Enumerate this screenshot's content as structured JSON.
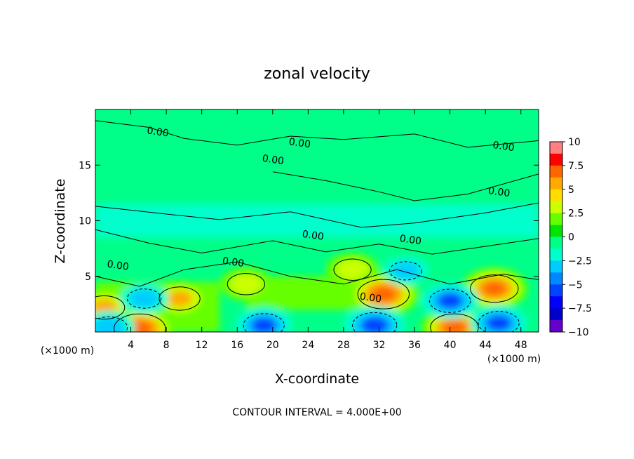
{
  "chart_data": {
    "type": "heatmap",
    "title": "zonal velocity",
    "xlabel": "X-coordinate",
    "ylabel": "Z-coordinate",
    "x_unit_label_left": "(×1000 m)",
    "x_unit_label_right": "(×1000 m)",
    "footer": "CONTOUR INTERVAL = 4.000E+00",
    "xlim": [
      0,
      50
    ],
    "ylim": [
      0,
      20
    ],
    "x_ticks": [
      4,
      8,
      12,
      16,
      20,
      24,
      28,
      32,
      36,
      40,
      44,
      48
    ],
    "x_tick_labels": [
      "4",
      "8",
      "12",
      "16",
      "20",
      "24",
      "28",
      "32",
      "36",
      "40",
      "44",
      "48"
    ],
    "y_ticks": [
      5,
      10,
      15
    ],
    "y_tick_labels": [
      "5",
      "10",
      "15"
    ],
    "contour_labels": [
      {
        "text": "0.00",
        "x": 7,
        "y": 17.7
      },
      {
        "text": "0.00",
        "x": 23,
        "y": 16.7
      },
      {
        "text": "0.00",
        "x": 20,
        "y": 15.2
      },
      {
        "text": "0.00",
        "x": 46,
        "y": 16.4
      },
      {
        "text": "0.00",
        "x": 45.5,
        "y": 12.3
      },
      {
        "text": "0.00",
        "x": 24.5,
        "y": 8.4
      },
      {
        "text": "0.00",
        "x": 35.5,
        "y": 8.0
      },
      {
        "text": "0.00",
        "x": 2.5,
        "y": 5.7
      },
      {
        "text": "0.00",
        "x": 15.5,
        "y": 6.0
      },
      {
        "text": "0.00",
        "x": 31,
        "y": 2.8
      }
    ],
    "features": [
      {
        "x": 5,
        "z": 0.3,
        "value": 9
      },
      {
        "x": 1,
        "z": 2.2,
        "value": 6
      },
      {
        "x": 9.5,
        "z": 3.0,
        "value": 6
      },
      {
        "x": 17,
        "z": 4.3,
        "value": 5
      },
      {
        "x": 29,
        "z": 5.6,
        "value": 5
      },
      {
        "x": 32.5,
        "z": 3.4,
        "value": 9
      },
      {
        "x": 45,
        "z": 3.9,
        "value": 8
      },
      {
        "x": 40.5,
        "z": 0.4,
        "value": 8
      },
      {
        "x": 31.5,
        "z": 0.6,
        "value": -7
      },
      {
        "x": 19,
        "z": 0.6,
        "value": -6
      },
      {
        "x": 40,
        "z": 2.8,
        "value": -6
      },
      {
        "x": 45.5,
        "z": 0.8,
        "value": -6
      },
      {
        "x": 1.5,
        "z": 0.4,
        "value": -5
      },
      {
        "x": 5.5,
        "z": 3.0,
        "value": -4
      },
      {
        "x": 35,
        "z": 5.5,
        "value": -3.5
      }
    ],
    "colorbar": {
      "ticks": [
        "10",
        "7.5",
        "5",
        "2.5",
        "0",
        "−2.5",
        "−5",
        "−7.5",
        "−10"
      ],
      "range": [
        -10,
        10
      ],
      "colors": [
        "#ff8080",
        "#ff0000",
        "#ff6600",
        "#ffaa00",
        "#ffdd00",
        "#ccff00",
        "#66ff00",
        "#00e600",
        "#00ff88",
        "#00ffcc",
        "#00ccff",
        "#0088ff",
        "#0044ff",
        "#0000ff",
        "#0000cc",
        "#6600cc"
      ]
    }
  }
}
